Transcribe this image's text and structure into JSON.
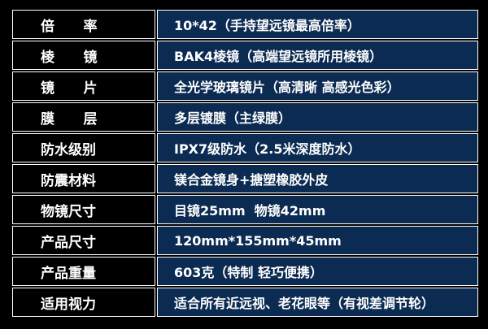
{
  "rows": [
    {
      "label": "倍      率",
      "value": "10*42（手持望远镜最高倍率）"
    },
    {
      "label": "棱      镜",
      "value": "BAK4棱镜（高端望远镜所用棱镜）"
    },
    {
      "label": "镜      片",
      "value": "全光学玻璃镜片（高清晰 高感光色彩）"
    },
    {
      "label": "膜      层",
      "value": "多层镀膜（主绿膜）"
    },
    {
      "label": "防水级别",
      "value": "IPX7级防水（2.5米深度防水）"
    },
    {
      "label": "防震材料",
      "value": "镁合金镜身+搪塑橡胶外皮"
    },
    {
      "label": "物镜尺寸",
      "value": "目镜25mm  物镜42mm"
    },
    {
      "label": "产品尺寸",
      "value": "120mm*155mm*45mm"
    },
    {
      "label": "产品重量",
      "value": "603克（特制 轻巧便携）"
    },
    {
      "label": "适用视力",
      "value": "适合所有近远视、老花眼等（有视差调节轮）"
    }
  ],
  "colors": {
    "label_bg": "#000000",
    "value_bg": "#0b2b52",
    "border": "#ffffff"
  }
}
